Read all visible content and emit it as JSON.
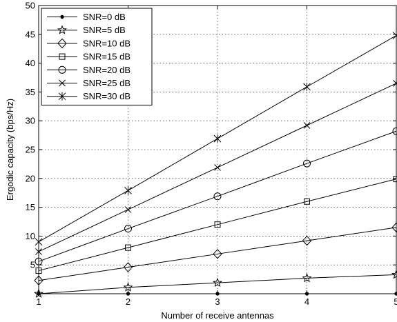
{
  "chart_data": {
    "type": "line",
    "title": "",
    "xlabel": "Number of receive antennas",
    "ylabel": "Ergodic capacity (bps/Hz)",
    "x": [
      1,
      2,
      3,
      4,
      5
    ],
    "xlim": [
      1,
      5
    ],
    "ylim": [
      0,
      50
    ],
    "xticks": [
      "1",
      "2",
      "3",
      "4",
      "5"
    ],
    "yticks": [
      "5",
      "10",
      "15",
      "20",
      "25",
      "30",
      "35",
      "40",
      "45",
      "50"
    ],
    "grid": true,
    "legend_position": "top-left",
    "series": [
      {
        "name": "SNR=0 dB",
        "marker": "dot",
        "values": [
          0.0,
          0.0,
          0.0,
          0.0,
          0.0
        ]
      },
      {
        "name": "SNR=5 dB",
        "marker": "star",
        "values": [
          0.0,
          1.1,
          1.9,
          2.7,
          3.3
        ]
      },
      {
        "name": "SNR=10 dB",
        "marker": "diamond",
        "values": [
          2.3,
          4.6,
          6.9,
          9.2,
          11.5
        ]
      },
      {
        "name": "SNR=15 dB",
        "marker": "square",
        "values": [
          4.0,
          8.0,
          12.0,
          16.0,
          19.9
        ]
      },
      {
        "name": "SNR=20 dB",
        "marker": "circle",
        "values": [
          5.6,
          11.3,
          16.9,
          22.6,
          28.2
        ]
      },
      {
        "name": "SNR=25 dB",
        "marker": "x",
        "values": [
          7.3,
          14.6,
          21.9,
          29.2,
          36.5
        ]
      },
      {
        "name": "SNR=30 dB",
        "marker": "asterisk",
        "values": [
          9.0,
          17.9,
          26.9,
          35.9,
          44.8
        ]
      }
    ]
  }
}
